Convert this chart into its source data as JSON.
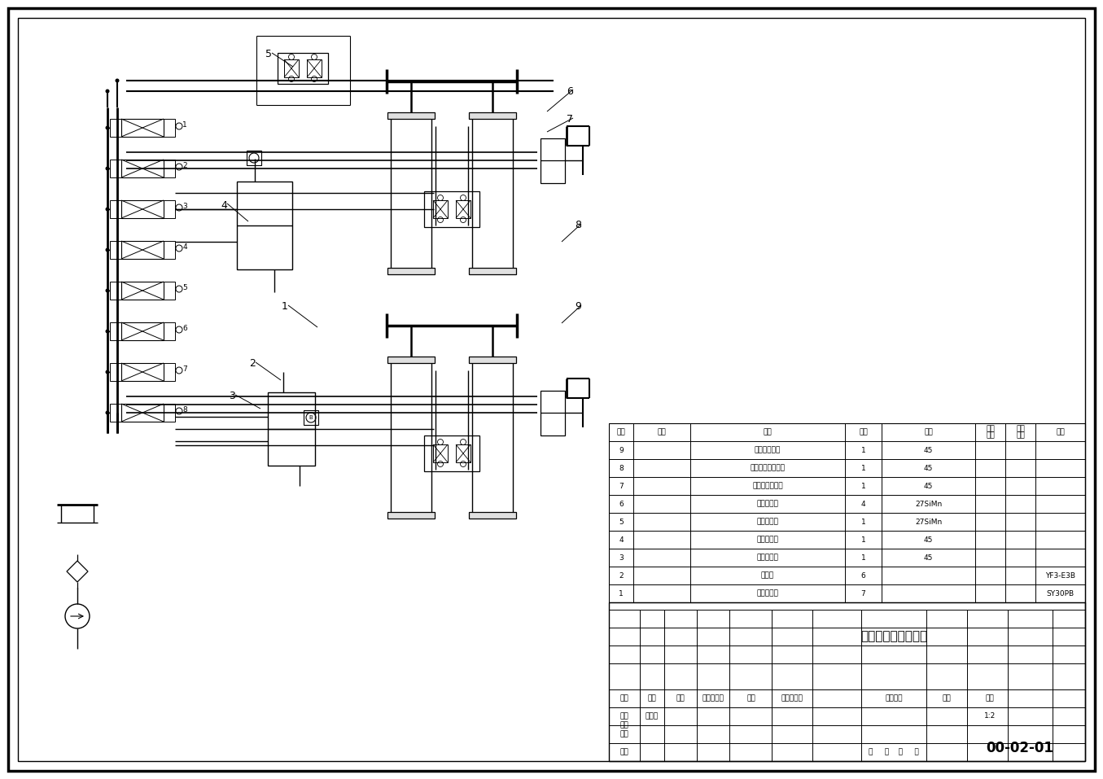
{
  "title": "液压支架液压原理图",
  "drawing_number": "00-02-01",
  "scale": "1:2",
  "bg_color": "#ffffff",
  "table_rows": [
    {
      "seq": "9",
      "code": "",
      "name": "护帮板千斤顶",
      "qty": "1",
      "material": "45",
      "note": ""
    },
    {
      "seq": "8",
      "code": "",
      "name": "掩护架侧推千斤顶",
      "qty": "1",
      "material": "45",
      "note": ""
    },
    {
      "seq": "7",
      "code": "",
      "name": "顶梁侧推千斤顶",
      "qty": "1",
      "material": "45",
      "note": ""
    },
    {
      "seq": "6",
      "code": "",
      "name": "立柱千斤顶",
      "qty": "4",
      "material": "27SiMn",
      "note": ""
    },
    {
      "seq": "5",
      "code": "",
      "name": "前梁千斤顶",
      "qty": "1",
      "material": "27SiMn",
      "note": ""
    },
    {
      "seq": "4",
      "code": "",
      "name": "推移千斤顶",
      "qty": "1",
      "material": "45",
      "note": ""
    },
    {
      "seq": "3",
      "code": "",
      "name": "防滑千斤顶",
      "qty": "1",
      "material": "45",
      "note": ""
    },
    {
      "seq": "2",
      "code": "",
      "name": "液滤阀",
      "qty": "6",
      "material": "",
      "note": "YF3-E3B"
    },
    {
      "seq": "1",
      "code": "",
      "name": "液控单向阀",
      "qty": "7",
      "material": "",
      "note": "SY30PB"
    }
  ]
}
